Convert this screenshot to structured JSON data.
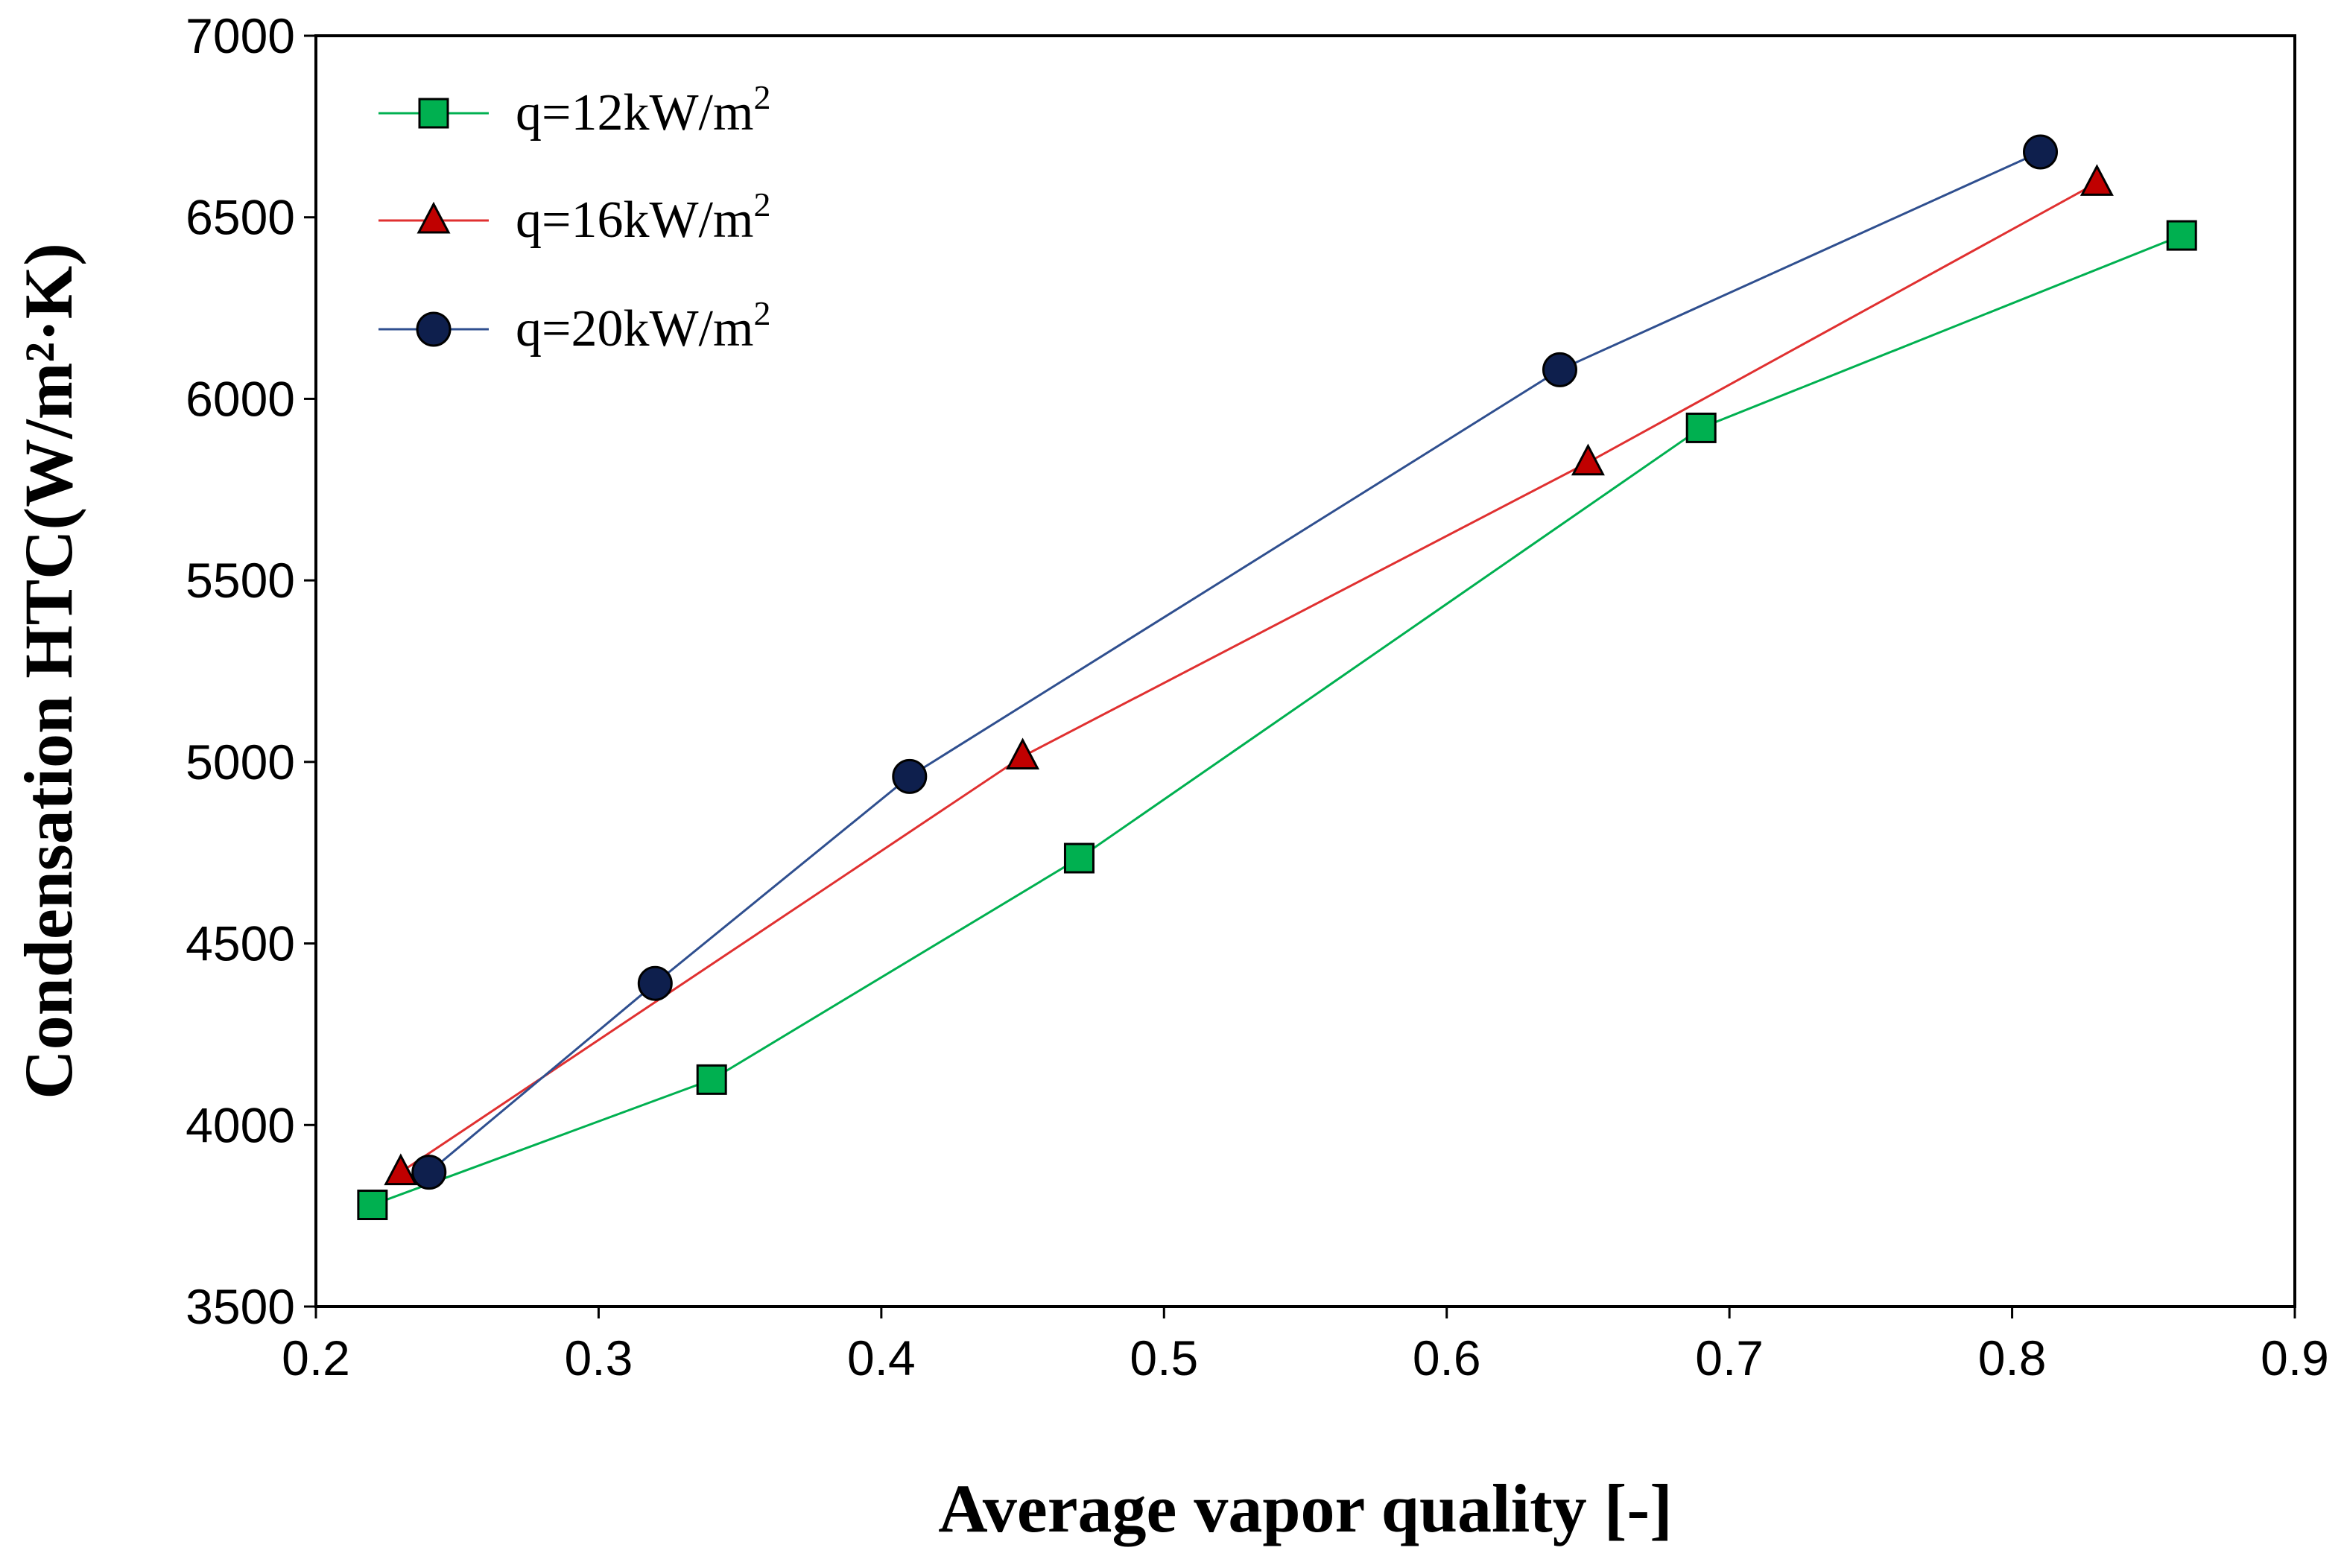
{
  "chart_data": {
    "type": "line",
    "title": "",
    "xlabel": "Average vapor quality [-]",
    "ylabel": "Condensation HTC(W/m²·K)",
    "xlim": [
      0.2,
      0.9
    ],
    "ylim": [
      3500,
      7000
    ],
    "xticks": [
      "0.2",
      "0.3",
      "0.4",
      "0.5",
      "0.6",
      "0.7",
      "0.8",
      "0.9"
    ],
    "yticks": [
      "3500",
      "4000",
      "4500",
      "5000",
      "5500",
      "6000",
      "6500",
      "7000"
    ],
    "grid": false,
    "legend_position": "top-left",
    "series": [
      {
        "name": "q=12kW/m",
        "sup": "2",
        "marker": "square",
        "line_color": "#00b050",
        "marker_color": "#00b050",
        "x": [
          0.22,
          0.34,
          0.47,
          0.69,
          0.86
        ],
        "y": [
          3780,
          4125,
          4735,
          5920,
          6450
        ]
      },
      {
        "name": "q=16kW/m",
        "sup": "2",
        "marker": "triangle",
        "line_color": "#e03030",
        "marker_color": "#c00000",
        "x": [
          0.23,
          0.45,
          0.65,
          0.83
        ],
        "y": [
          3870,
          5015,
          5825,
          6595
        ]
      },
      {
        "name": "q=20kW/m",
        "sup": "2",
        "marker": "circle",
        "line_color": "#2f4f8f",
        "marker_color": "#0e1f4d",
        "x": [
          0.24,
          0.32,
          0.41,
          0.64,
          0.81
        ],
        "y": [
          3870,
          4390,
          4960,
          6080,
          6680
        ]
      }
    ]
  }
}
